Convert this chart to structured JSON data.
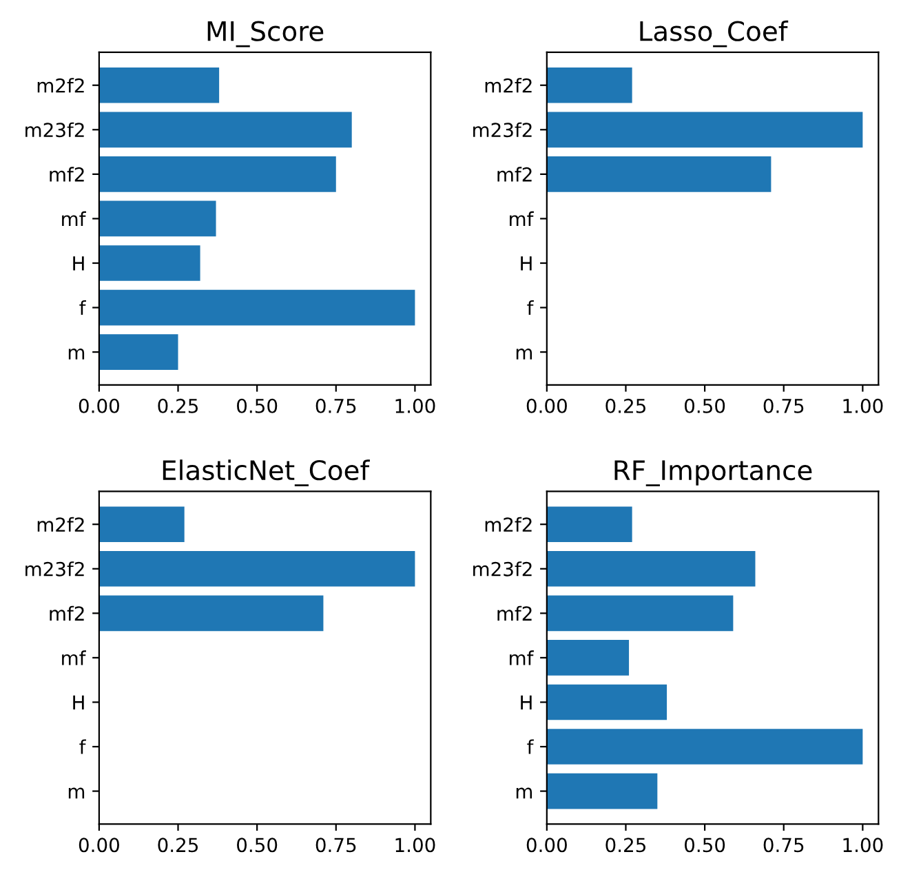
{
  "chart_data": [
    {
      "type": "bar",
      "orientation": "horizontal",
      "title": "MI_Score",
      "categories": [
        "m2f2",
        "m23f2",
        "mf2",
        "mf",
        "H",
        "f",
        "m"
      ],
      "values": [
        0.38,
        0.8,
        0.75,
        0.37,
        0.32,
        1.0,
        0.25
      ],
      "color": "#1f77b4",
      "xlim": [
        0,
        1.05
      ],
      "xticks": [
        {
          "value": 0,
          "label": "0.00"
        },
        {
          "value": 0.25,
          "label": "0.25"
        },
        {
          "value": 0.5,
          "label": "0.50"
        },
        {
          "value": 0.75,
          "label": "0.75"
        },
        {
          "value": 1,
          "label": "1.00"
        }
      ]
    },
    {
      "type": "bar",
      "orientation": "horizontal",
      "title": "Lasso_Coef",
      "categories": [
        "m2f2",
        "m23f2",
        "mf2",
        "mf",
        "H",
        "f",
        "m"
      ],
      "values": [
        0.27,
        1.0,
        0.71,
        0,
        0,
        0,
        0
      ],
      "color": "#1f77b4",
      "xlim": [
        0,
        1.05
      ],
      "xticks": [
        {
          "value": 0,
          "label": "0.00"
        },
        {
          "value": 0.25,
          "label": "0.25"
        },
        {
          "value": 0.5,
          "label": "0.50"
        },
        {
          "value": 0.75,
          "label": "0.75"
        },
        {
          "value": 1,
          "label": "1.00"
        }
      ]
    },
    {
      "type": "bar",
      "orientation": "horizontal",
      "title": "ElasticNet_Coef",
      "categories": [
        "m2f2",
        "m23f2",
        "mf2",
        "mf",
        "H",
        "f",
        "m"
      ],
      "values": [
        0.27,
        1.0,
        0.71,
        0,
        0,
        0,
        0
      ],
      "color": "#1f77b4",
      "xlim": [
        0,
        1.05
      ],
      "xticks": [
        {
          "value": 0,
          "label": "0.00"
        },
        {
          "value": 0.25,
          "label": "0.25"
        },
        {
          "value": 0.5,
          "label": "0.50"
        },
        {
          "value": 0.75,
          "label": "0.75"
        },
        {
          "value": 1,
          "label": "1.00"
        }
      ]
    },
    {
      "type": "bar",
      "orientation": "horizontal",
      "title": "RF_Importance",
      "categories": [
        "m2f2",
        "m23f2",
        "mf2",
        "mf",
        "H",
        "f",
        "m"
      ],
      "values": [
        0.27,
        0.66,
        0.59,
        0.26,
        0.38,
        1.0,
        0.35
      ],
      "color": "#1f77b4",
      "xlim": [
        0,
        1.05
      ],
      "xticks": [
        {
          "value": 0,
          "label": "0.00"
        },
        {
          "value": 0.25,
          "label": "0.25"
        },
        {
          "value": 0.5,
          "label": "0.50"
        },
        {
          "value": 0.75,
          "label": "0.75"
        },
        {
          "value": 1,
          "label": "1.00"
        }
      ]
    }
  ]
}
